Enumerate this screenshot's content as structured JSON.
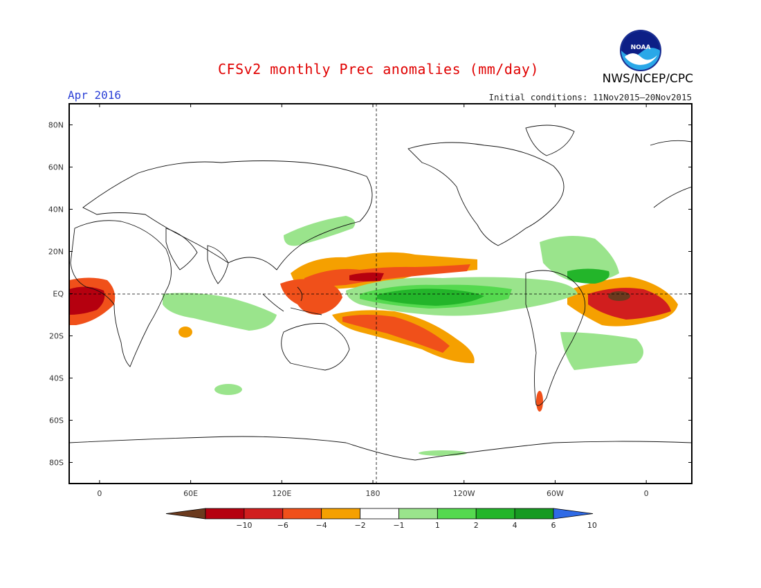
{
  "header": {
    "title": "CFSv2 monthly Prec anomalies (mm/day)",
    "month": "Apr 2016",
    "initial_conditions": "Initial conditions: 11Nov2015–20Nov2015",
    "agency": "NWS/NCEP/CPC",
    "logo_text": "NOAA"
  },
  "map": {
    "lat_labels": [
      "80N",
      "60N",
      "40N",
      "20N",
      "EQ",
      "20S",
      "40S",
      "60S",
      "80S"
    ],
    "lat_values": [
      80,
      60,
      40,
      20,
      0,
      -20,
      -40,
      -60,
      -80
    ],
    "lon_labels": [
      "0",
      "60E",
      "120E",
      "180",
      "120W",
      "60W",
      "0"
    ],
    "lon_values": [
      0,
      60,
      120,
      180,
      240,
      300,
      360
    ],
    "lon_range": [
      -20,
      390
    ],
    "lat_range": [
      -90,
      90
    ]
  },
  "colorbar": {
    "labels": [
      "-10",
      "-6",
      "-4",
      "-2",
      "-1",
      "1",
      "2",
      "4",
      "6",
      "10"
    ],
    "colors": [
      "#6b3a1e",
      "#b5000f",
      "#d11e1e",
      "#f0501a",
      "#f5a000",
      "#ffffff",
      "#9ae48c",
      "#55d94f",
      "#23b52a",
      "#179a22",
      "#2f6ae6"
    ]
  }
}
